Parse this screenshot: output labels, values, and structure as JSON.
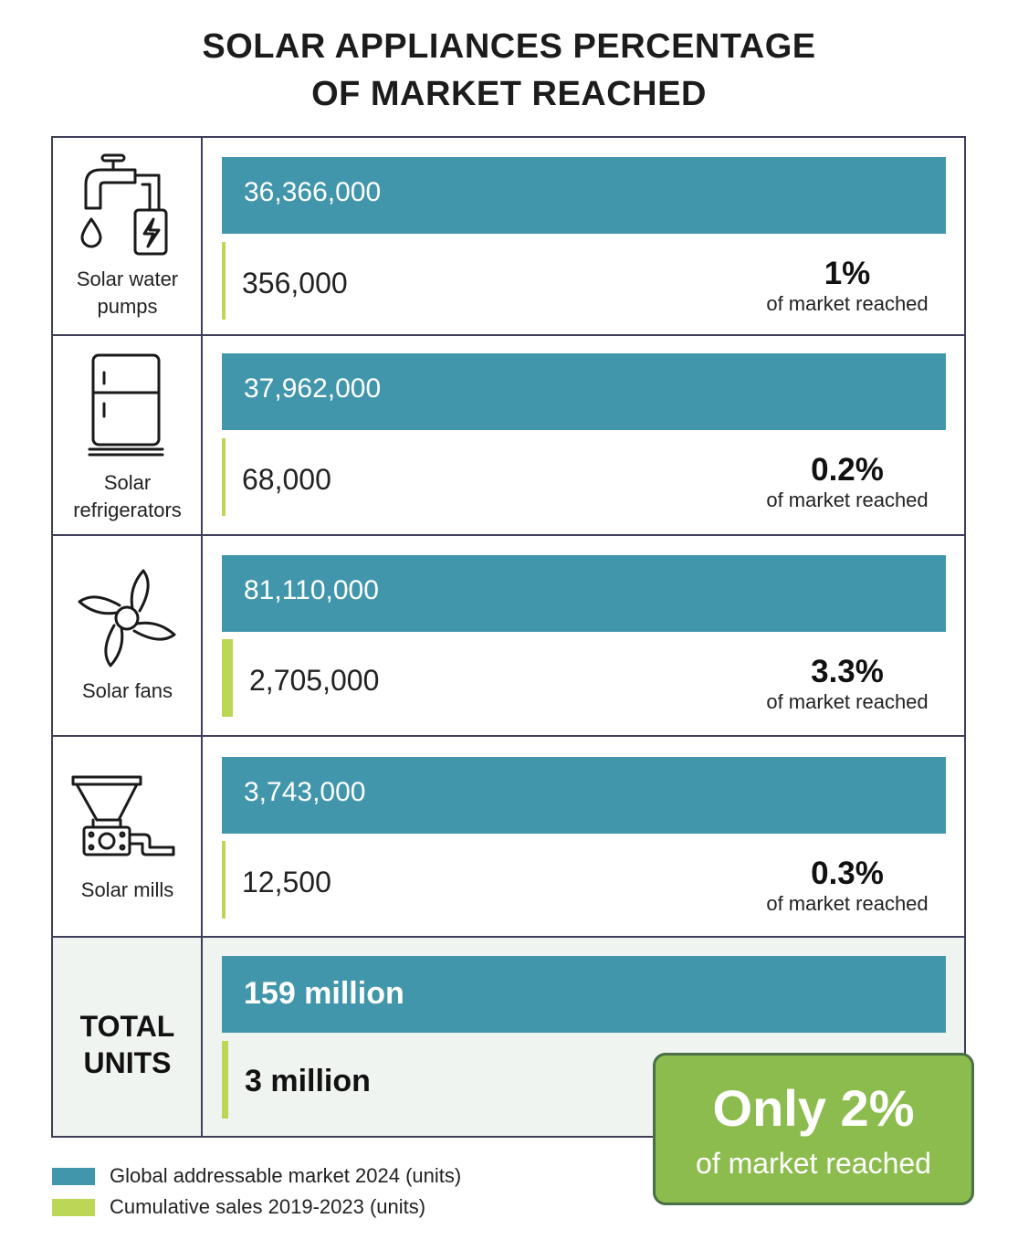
{
  "title": {
    "line1": "SOLAR APPLIANCES PERCENTAGE",
    "line2": "OF MARKET REACHED"
  },
  "colors": {
    "market": "#4196ab",
    "sales": "#bcd756",
    "callout": "#8cbc4d",
    "border": "#3f3f5a"
  },
  "rows": [
    {
      "label_line1": "Solar water",
      "label_line2": "pumps",
      "icon": "water-pump-icon",
      "market_text": "36,366,000",
      "sales_text": "356,000",
      "pct": "1%",
      "pct_sub": "of market reached"
    },
    {
      "label_line1": "Solar",
      "label_line2": "refrigerators",
      "icon": "refrigerator-icon",
      "market_text": "37,962,000",
      "sales_text": "68,000",
      "pct": "0.2%",
      "pct_sub": "of market reached"
    },
    {
      "label_line1": "Solar fans",
      "icon": "fan-icon",
      "market_text": "81,110,000",
      "sales_text": "2,705,000",
      "pct": "3.3%",
      "pct_sub": "of market reached"
    },
    {
      "label_line1": "Solar mills",
      "icon": "mill-icon",
      "market_text": "3,743,000",
      "sales_text": "12,500",
      "pct": "0.3%",
      "pct_sub": "of market reached"
    }
  ],
  "total": {
    "label_line1": "TOTAL",
    "label_line2": "UNITS",
    "market_text": "159 million",
    "sales_text": "3 million",
    "callout_big": "Only 2%",
    "callout_small": "of market reached"
  },
  "legend": {
    "market": "Global addressable market 2024 (units)",
    "sales": "Cumulative sales 2019-2023 (units)"
  },
  "chart_data": {
    "type": "bar",
    "categories": [
      "Solar water pumps",
      "Solar refrigerators",
      "Solar fans",
      "Solar mills",
      "TOTAL UNITS"
    ],
    "series": [
      {
        "name": "Global addressable market 2024 (units)",
        "values": [
          36366000,
          37962000,
          81110000,
          3743000,
          159000000
        ]
      },
      {
        "name": "Cumulative sales 2019-2023 (units)",
        "values": [
          356000,
          68000,
          2705000,
          12500,
          3000000
        ]
      }
    ],
    "percent_reached": [
      1,
      0.2,
      3.3,
      0.3,
      2
    ],
    "title": "SOLAR APPLIANCES PERCENTAGE OF MARKET REACHED",
    "legend_position": "bottom-left"
  }
}
